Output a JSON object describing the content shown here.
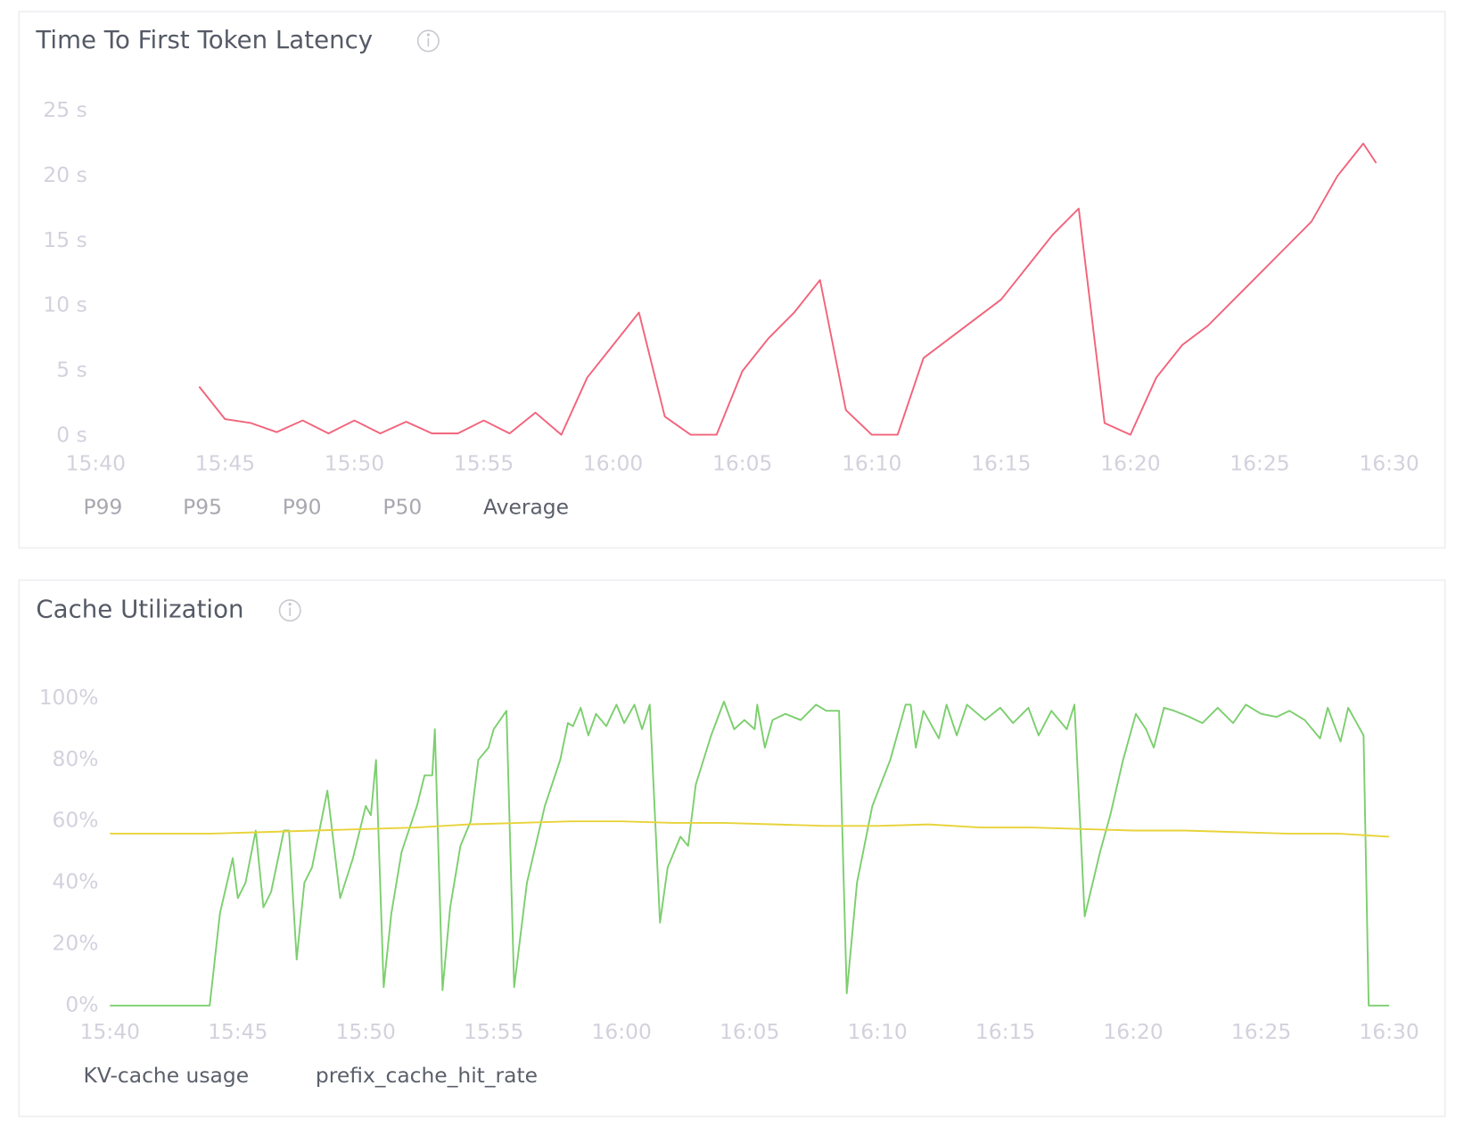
{
  "chart_data": [
    {
      "type": "line",
      "title": "Time To First Token Latency",
      "xlim": [
        940,
        990
      ],
      "xticks": [
        {
          "value": 940,
          "label": "15:40"
        },
        {
          "value": 945,
          "label": "15:45"
        },
        {
          "value": 950,
          "label": "15:50"
        },
        {
          "value": 955,
          "label": "15:55"
        },
        {
          "value": 960,
          "label": "16:00"
        },
        {
          "value": 965,
          "label": "16:05"
        },
        {
          "value": 970,
          "label": "16:10"
        },
        {
          "value": 975,
          "label": "16:15"
        },
        {
          "value": 980,
          "label": "16:20"
        },
        {
          "value": 985,
          "label": "16:25"
        },
        {
          "value": 990,
          "label": "16:30"
        }
      ],
      "ylim": [
        0,
        25
      ],
      "yticks": [
        {
          "value": 0,
          "label": "0 s"
        },
        {
          "value": 5,
          "label": "5 s"
        },
        {
          "value": 10,
          "label": "10 s"
        },
        {
          "value": 15,
          "label": "15 s"
        },
        {
          "value": 20,
          "label": "20 s"
        },
        {
          "value": 25,
          "label": "25 s"
        }
      ],
      "grid": false,
      "series": [
        {
          "name": "P99",
          "hidden": true
        },
        {
          "name": "P95",
          "hidden": true
        },
        {
          "name": "P90",
          "hidden": true
        },
        {
          "name": "P50",
          "hidden": true
        },
        {
          "name": "Average",
          "color": "#f2637b",
          "x": [
            944,
            945,
            946,
            947,
            948,
            949,
            950,
            951,
            952,
            953,
            954,
            955,
            956,
            957,
            958,
            959,
            960,
            961,
            962,
            963,
            964,
            965,
            966,
            967,
            968,
            969,
            970,
            971,
            972,
            973,
            974,
            975,
            976,
            977,
            978,
            979,
            980,
            981,
            982,
            983,
            984,
            985,
            986,
            987,
            988,
            989,
            989.5
          ],
          "values": [
            3.8,
            1.3,
            1.0,
            0.3,
            1.2,
            0.2,
            1.2,
            0.2,
            1.1,
            0.2,
            0.2,
            1.2,
            0.2,
            1.8,
            0.1,
            4.5,
            7.0,
            9.5,
            1.5,
            0.1,
            0.1,
            5.0,
            7.5,
            9.5,
            12.0,
            2.0,
            0.1,
            0.1,
            6.0,
            7.5,
            9.0,
            10.5,
            13.0,
            15.5,
            17.5,
            1.0,
            0.1,
            4.5,
            7.0,
            8.5,
            10.5,
            12.5,
            14.5,
            16.5,
            20.0,
            22.5,
            21.0
          ]
        }
      ]
    },
    {
      "type": "line",
      "title": "Cache Utilization",
      "xlim": [
        940,
        990
      ],
      "xticks": [
        {
          "value": 940,
          "label": "15:40"
        },
        {
          "value": 945,
          "label": "15:45"
        },
        {
          "value": 950,
          "label": "15:50"
        },
        {
          "value": 955,
          "label": "15:55"
        },
        {
          "value": 960,
          "label": "16:00"
        },
        {
          "value": 965,
          "label": "16:05"
        },
        {
          "value": 970,
          "label": "16:10"
        },
        {
          "value": 975,
          "label": "16:15"
        },
        {
          "value": 980,
          "label": "16:20"
        },
        {
          "value": 985,
          "label": "16:25"
        },
        {
          "value": 990,
          "label": "16:30"
        }
      ],
      "ylim": [
        0,
        100
      ],
      "yticks": [
        {
          "value": 0,
          "label": "0%"
        },
        {
          "value": 20,
          "label": "20%"
        },
        {
          "value": 40,
          "label": "40%"
        },
        {
          "value": 60,
          "label": "60%"
        },
        {
          "value": 80,
          "label": "80%"
        },
        {
          "value": 100,
          "label": "100%"
        }
      ],
      "grid": false,
      "series": [
        {
          "name": "KV-cache usage",
          "color": "#7ccf6e",
          "x": [
            940,
            943.9,
            944.3,
            944.8,
            945.0,
            945.3,
            945.7,
            946.0,
            946.3,
            946.8,
            947.0,
            947.3,
            947.6,
            947.9,
            948.5,
            949.0,
            949.5,
            950.0,
            950.2,
            950.4,
            950.7,
            951.0,
            951.4,
            952.0,
            952.3,
            952.6,
            952.7,
            953.0,
            953.3,
            953.7,
            954.1,
            954.4,
            954.8,
            955.0,
            955.5,
            955.8,
            956.3,
            957.0,
            957.6,
            957.9,
            958.1,
            958.4,
            958.7,
            959.0,
            959.4,
            959.8,
            960.1,
            960.5,
            960.8,
            961.1,
            961.5,
            961.8,
            962.3,
            962.6,
            962.9,
            963.5,
            964.0,
            964.4,
            964.8,
            965.2,
            965.3,
            965.6,
            965.9,
            966.4,
            967.0,
            967.6,
            968.0,
            968.5,
            968.8,
            969.2,
            969.8,
            970.5,
            971.1,
            971.3,
            971.5,
            971.8,
            972.4,
            972.7,
            973.1,
            973.5,
            974.2,
            974.8,
            975.3,
            975.9,
            976.3,
            976.8,
            977.4,
            977.7,
            978.1,
            978.7,
            979.1,
            979.6,
            980.1,
            980.5,
            980.8,
            981.2,
            981.6,
            982.2,
            982.7,
            983.3,
            983.9,
            984.4,
            985.0,
            985.6,
            986.1,
            986.7,
            987.3,
            987.6,
            988.1,
            988.4,
            989.0,
            989.2,
            990
          ],
          "values": [
            0,
            0,
            30,
            48,
            35,
            40,
            57,
            32,
            37,
            57,
            57,
            15,
            40,
            45,
            70,
            35,
            48,
            65,
            62,
            80,
            6,
            30,
            50,
            65,
            75,
            75,
            90,
            5,
            32,
            52,
            60,
            80,
            84,
            90,
            96,
            6,
            40,
            65,
            80,
            92,
            91,
            97,
            88,
            95,
            91,
            98,
            92,
            98,
            90,
            98,
            27,
            45,
            55,
            52,
            72,
            88,
            99,
            90,
            93,
            90,
            98,
            84,
            93,
            95,
            93,
            98,
            96,
            96,
            4,
            40,
            65,
            80,
            98,
            98,
            84,
            96,
            87,
            98,
            88,
            98,
            93,
            97,
            92,
            97,
            88,
            96,
            90,
            98,
            29,
            50,
            62,
            80,
            95,
            90,
            84,
            97,
            96,
            94,
            92,
            97,
            92,
            98,
            95,
            94,
            96,
            93,
            87,
            97,
            86,
            97,
            88,
            0,
            0
          ]
        },
        {
          "name": "prefix_cache_hit_rate",
          "color": "#e8d33a",
          "x": [
            940,
            944,
            946,
            948,
            950,
            952,
            954,
            956,
            958,
            960,
            962,
            964,
            966,
            968,
            970,
            972,
            974,
            976,
            978,
            980,
            982,
            984,
            986,
            988,
            990
          ],
          "values": [
            56,
            56,
            56.5,
            57,
            57.5,
            58,
            59,
            59.5,
            60,
            60,
            59.5,
            59.5,
            59,
            58.5,
            58.5,
            59,
            58,
            58,
            57.5,
            57,
            57,
            56.5,
            56,
            56,
            55
          ]
        }
      ]
    }
  ]
}
